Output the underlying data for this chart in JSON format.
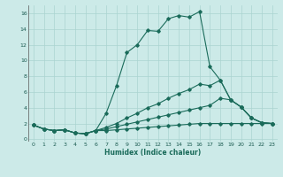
{
  "xlabel": "Humidex (Indice chaleur)",
  "bg_color": "#cceae8",
  "grid_color": "#aad4d0",
  "line_color": "#1a6b5a",
  "xlim": [
    -0.5,
    23.5
  ],
  "ylim": [
    -0.3,
    17
  ],
  "xticks": [
    0,
    1,
    2,
    3,
    4,
    5,
    6,
    7,
    8,
    9,
    10,
    11,
    12,
    13,
    14,
    15,
    16,
    17,
    18,
    19,
    20,
    21,
    22,
    23
  ],
  "yticks": [
    0,
    2,
    4,
    6,
    8,
    10,
    12,
    14,
    16
  ],
  "line1_x": [
    0,
    1,
    2,
    3,
    4,
    5,
    6,
    7,
    8,
    9,
    10,
    11,
    12,
    13,
    14,
    15,
    16,
    17,
    18,
    19,
    20,
    21,
    22,
    23
  ],
  "line1_y": [
    1.8,
    1.3,
    1.1,
    1.2,
    0.8,
    0.7,
    1.1,
    3.3,
    6.8,
    11.0,
    12.0,
    13.8,
    13.7,
    15.3,
    15.7,
    15.5,
    16.2,
    9.2,
    7.5,
    5.0,
    4.1,
    2.7,
    2.1,
    2.0
  ],
  "line2_x": [
    0,
    1,
    2,
    3,
    4,
    5,
    6,
    7,
    8,
    9,
    10,
    11,
    12,
    13,
    14,
    15,
    16,
    17,
    18,
    19,
    20,
    21,
    22,
    23
  ],
  "line2_y": [
    1.8,
    1.3,
    1.1,
    1.2,
    0.8,
    0.7,
    1.1,
    1.5,
    2.0,
    2.7,
    3.3,
    4.0,
    4.5,
    5.2,
    5.8,
    6.3,
    7.0,
    6.8,
    7.5,
    5.0,
    4.1,
    2.7,
    2.1,
    2.0
  ],
  "line3_x": [
    0,
    1,
    2,
    3,
    4,
    5,
    6,
    7,
    8,
    9,
    10,
    11,
    12,
    13,
    14,
    15,
    16,
    17,
    18,
    19,
    20,
    21,
    22,
    23
  ],
  "line3_y": [
    1.8,
    1.3,
    1.1,
    1.2,
    0.8,
    0.7,
    1.1,
    1.3,
    1.6,
    1.9,
    2.2,
    2.5,
    2.8,
    3.1,
    3.4,
    3.7,
    4.0,
    4.3,
    5.2,
    5.0,
    4.1,
    2.7,
    2.1,
    2.0
  ],
  "line4_x": [
    0,
    1,
    2,
    3,
    4,
    5,
    6,
    7,
    8,
    9,
    10,
    11,
    12,
    13,
    14,
    15,
    16,
    17,
    18,
    19,
    20,
    21,
    22,
    23
  ],
  "line4_y": [
    1.8,
    1.3,
    1.1,
    1.2,
    0.8,
    0.7,
    1.1,
    1.1,
    1.2,
    1.3,
    1.4,
    1.5,
    1.6,
    1.7,
    1.8,
    1.9,
    2.0,
    2.0,
    2.0,
    2.0,
    2.0,
    2.0,
    2.0,
    2.0
  ]
}
